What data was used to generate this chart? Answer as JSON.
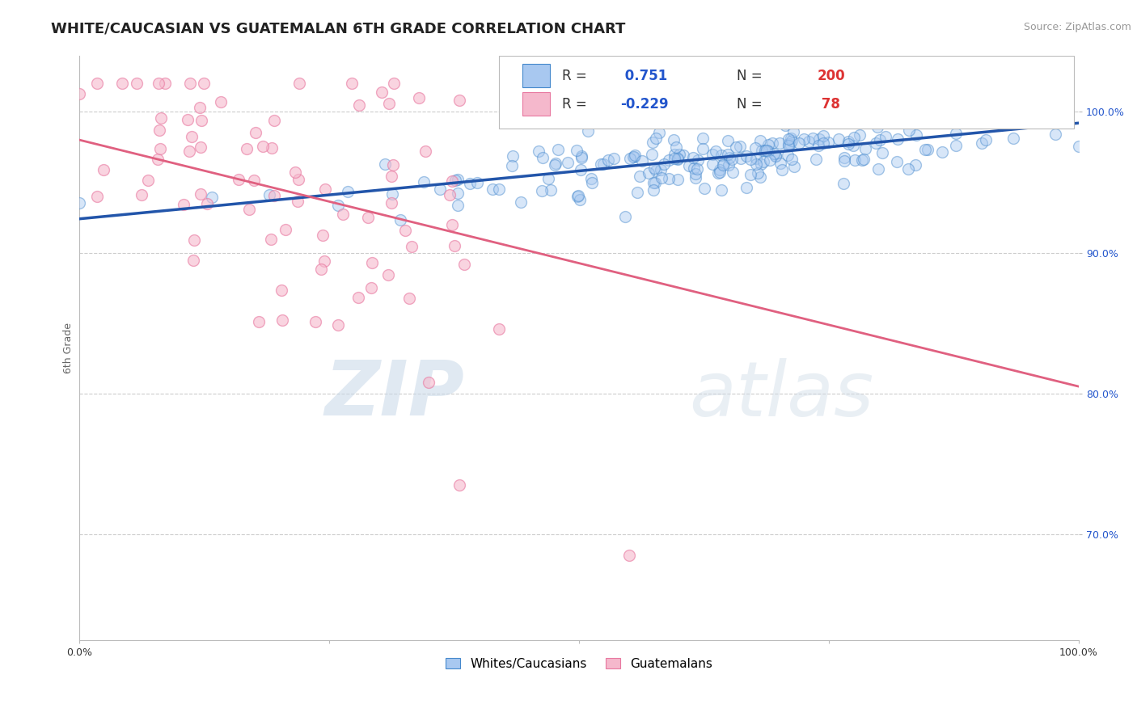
{
  "title": "WHITE/CAUCASIAN VS GUATEMALAN 6TH GRADE CORRELATION CHART",
  "source": "Source: ZipAtlas.com",
  "ylabel": "6th Grade",
  "watermark_zip": "ZIP",
  "watermark_atlas": "atlas",
  "blue_R": 0.751,
  "blue_N": 200,
  "pink_R": -0.229,
  "pink_N": 78,
  "blue_color": "#a8c8f0",
  "pink_color": "#f5b8cc",
  "blue_line_color": "#2255aa",
  "pink_line_color": "#e06080",
  "blue_edge_color": "#4488cc",
  "pink_edge_color": "#e878a0",
  "legend_R_color": "#2255cc",
  "legend_N_color": "#dd3333",
  "xlim": [
    0.0,
    1.0
  ],
  "ylim": [
    0.625,
    1.04
  ],
  "yticks": [
    0.7,
    0.8,
    0.9,
    1.0
  ],
  "ytick_labels": [
    "70.0%",
    "80.0%",
    "90.0%",
    "100.0%"
  ],
  "xticks": [
    0.0,
    0.25,
    0.5,
    0.75,
    1.0
  ],
  "xtick_labels": [
    "0.0%",
    "",
    "",
    "",
    "100.0%"
  ],
  "blue_intercept": 0.924,
  "blue_slope": 0.068,
  "pink_intercept": 0.98,
  "pink_slope": -0.175,
  "grid_color": "#cccccc",
  "bg_color": "#ffffff",
  "title_fontsize": 13,
  "axis_label_fontsize": 9,
  "tick_fontsize": 9,
  "source_fontsize": 9,
  "scatter_size": 100,
  "scatter_alpha": 0.45,
  "scatter_linewidth": 1.0
}
